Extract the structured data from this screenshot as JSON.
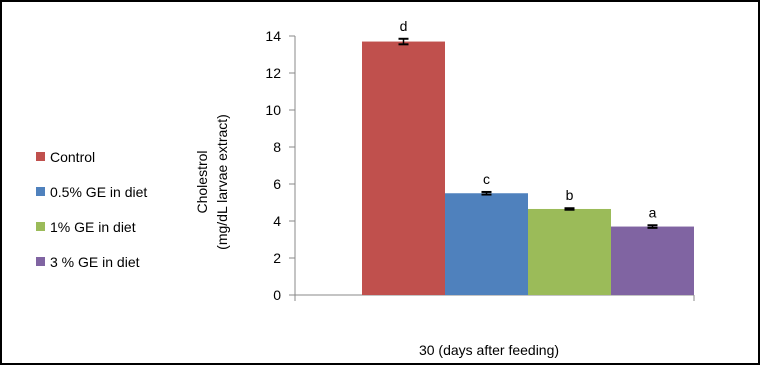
{
  "chart_data": {
    "type": "bar",
    "xlabel": "30 (days after feeding)",
    "ylabel_line1": "Cholestrol",
    "ylabel_line2": "(mg/dL larvae extract)",
    "ylim": [
      0,
      14
    ],
    "yticks": [
      "0",
      "2",
      "4",
      "6",
      "8",
      "10",
      "12",
      "14"
    ],
    "grid": false,
    "legend_position": "left",
    "series": [
      {
        "name": "Control",
        "value": 13.7,
        "error": 0.15,
        "sig": "d",
        "color": "#c0504d"
      },
      {
        "name": "0.5% GE in diet",
        "value": 5.5,
        "error": 0.07,
        "sig": "c",
        "color": "#4f81bd"
      },
      {
        "name": "1% GE in diet",
        "value": 4.65,
        "error": 0.04,
        "sig": "b",
        "color": "#9bbb59"
      },
      {
        "name": "3 % GE in diet",
        "value": 3.7,
        "error": 0.07,
        "sig": "a",
        "color": "#8064a2"
      }
    ]
  }
}
